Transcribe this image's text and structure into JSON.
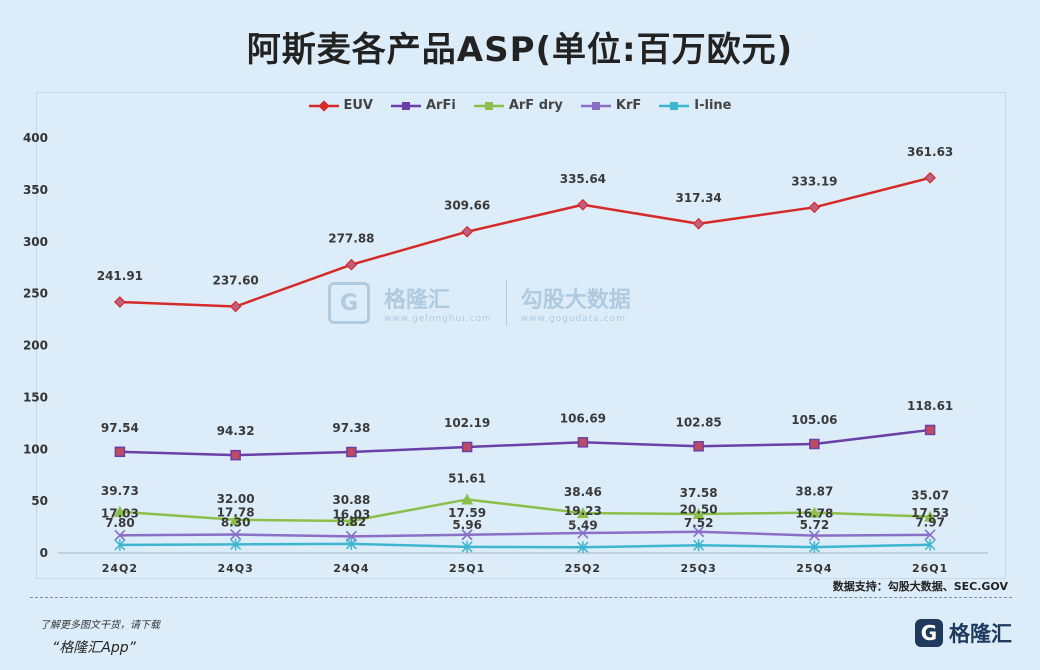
{
  "title": "阿斯麦各产品ASP(单位:百万欧元)",
  "chart_data": {
    "type": "line",
    "title": "阿斯麦各产品ASP(单位:百万欧元)",
    "categories": [
      "24Q2",
      "24Q3",
      "24Q4",
      "25Q1",
      "25Q2",
      "25Q3",
      "25Q4",
      "26Q1"
    ],
    "ylim": [
      0,
      400
    ],
    "yticks": [
      "0",
      "50",
      "100",
      "150",
      "200",
      "250",
      "300",
      "350",
      "400"
    ],
    "grid": false,
    "legend_position": "top",
    "series": [
      {
        "name": "EUV",
        "color": "#d42a2a",
        "marker": "diamond",
        "values": [
          241.91,
          237.6,
          277.88,
          309.66,
          335.64,
          317.34,
          333.19,
          361.63
        ],
        "labels": [
          "241.91",
          "237.60",
          "277.88",
          "309.66",
          "335.64",
          "317.34",
          "333.19",
          "361.63"
        ]
      },
      {
        "name": "ArFi",
        "color": "#6a3fa8",
        "marker": "square",
        "values": [
          97.54,
          94.32,
          97.38,
          102.19,
          106.69,
          102.85,
          105.06,
          118.61
        ],
        "labels": [
          "97.54",
          "94.32",
          "97.38",
          "102.19",
          "106.69",
          "102.85",
          "105.06",
          "118.61"
        ]
      },
      {
        "name": "ArF dry",
        "color": "#8cbf4a",
        "marker": "triangle",
        "values": [
          39.73,
          32.0,
          30.88,
          51.61,
          38.46,
          37.58,
          38.87,
          35.07
        ],
        "labels": [
          "39.73",
          "32.00",
          "30.88",
          "51.61",
          "38.46",
          "37.58",
          "38.87",
          "35.07"
        ]
      },
      {
        "name": "KrF",
        "color": "#8a6fc7",
        "marker": "x",
        "values": [
          17.03,
          17.78,
          16.03,
          17.59,
          19.23,
          20.5,
          16.78,
          17.53
        ],
        "labels": [
          "17.03",
          "17.78",
          "16.03",
          "17.59",
          "19.23",
          "20.50",
          "16.78",
          "17.53"
        ]
      },
      {
        "name": "I-line",
        "color": "#3fb6cf",
        "marker": "star",
        "values": [
          7.8,
          8.3,
          8.82,
          5.96,
          5.49,
          7.52,
          5.72,
          7.97
        ],
        "labels": [
          "7.80",
          "8.30",
          "8.82",
          "5.96",
          "5.49",
          "7.52",
          "5.72",
          "7.97"
        ]
      }
    ]
  },
  "source": "数据支持：勾股大数据、SEC.GOV",
  "watermark": {
    "brand_name": "格隆汇",
    "brand_sub": "www.gelonghui.com",
    "partner_name": "勾股大数据",
    "partner_url": "www.gogudata.com"
  },
  "footer": {
    "promo_line1": "了解更多图文干货，请下载",
    "promo_line2": "“格隆汇App”",
    "brand_glyph": "G",
    "brand_name": "格隆汇"
  }
}
